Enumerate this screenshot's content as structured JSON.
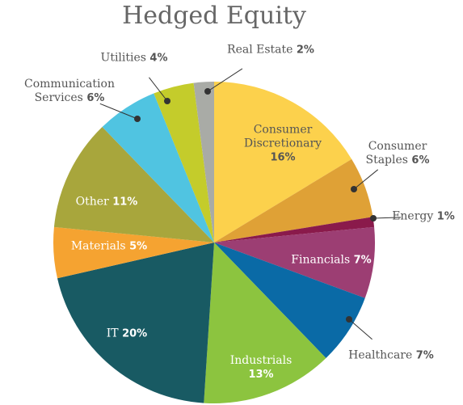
{
  "chart_data": {
    "type": "pie",
    "title": "Hedged Equity",
    "categories": [
      "Consumer Discretionary",
      "Consumer Staples",
      "Energy",
      "Financials",
      "Healthcare",
      "Industrials",
      "IT",
      "Materials",
      "Other",
      "Communication Services",
      "Utilities",
      "Real Estate"
    ],
    "values": [
      16,
      6,
      1,
      7,
      7,
      13,
      20,
      5,
      11,
      6,
      4,
      2
    ],
    "value_labels": [
      "16%",
      "6%",
      "1%",
      "7%",
      "7%",
      "13%",
      "20%",
      "5%",
      "11%",
      "6%",
      "4%",
      "2%"
    ],
    "colors": [
      "#fcd14c",
      "#dfa136",
      "#8a1a4b",
      "#9c3e73",
      "#0a6aa6",
      "#8cc43f",
      "#185a63",
      "#f5a331",
      "#a8a63c",
      "#50c4e1",
      "#c4cc2b",
      "#a9aba6"
    ]
  }
}
